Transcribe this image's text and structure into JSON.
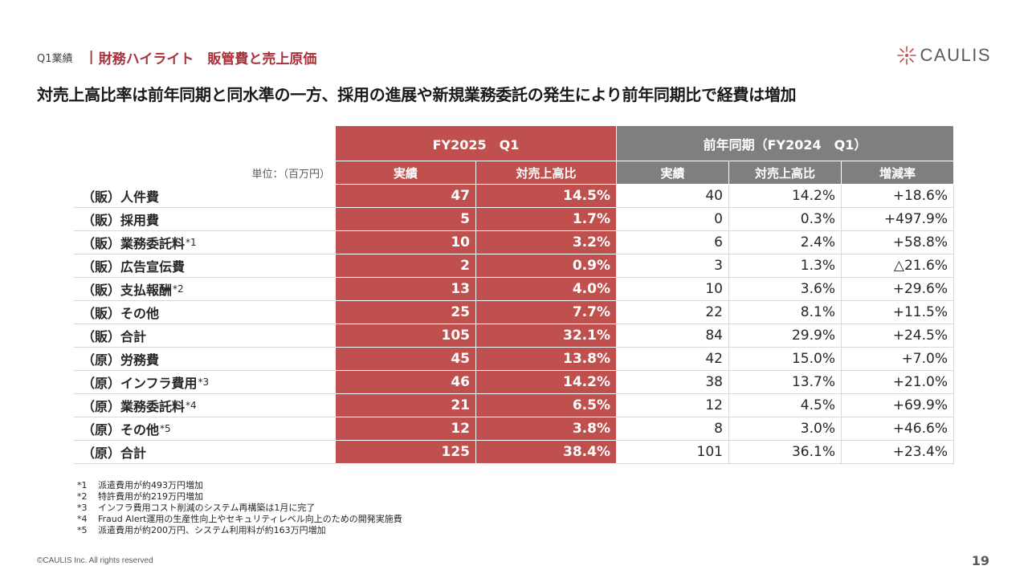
{
  "header": {
    "crumb": "Q1業績",
    "separator": "|",
    "section": "財務ハイライト　販管費と売上原価"
  },
  "logo": {
    "text": "CAULIS",
    "color": "#c0504d"
  },
  "headline": "対売上高比率は前年同期と同水準の一方、採用の進展や新規業務委託の発生により前年同期比で経費は増加",
  "table": {
    "unit_label": "単位：（百万円）",
    "group_current": "FY2025　Q1",
    "group_prior": "前年同期（FY2024　Q1）",
    "columns": [
      "実績",
      "対売上高比",
      "実績",
      "対売上高比",
      "増減率"
    ],
    "rows": [
      {
        "label": "（販）人件費",
        "note": "",
        "cur": "47",
        "cur_ratio": "14.5%",
        "prev": "40",
        "prev_ratio": "14.2%",
        "change": "+18.6%"
      },
      {
        "label": "（販）採用費",
        "note": "",
        "cur": "5",
        "cur_ratio": "1.7%",
        "prev": "0",
        "prev_ratio": "0.3%",
        "change": "+497.9%"
      },
      {
        "label": "（販）業務委託料",
        "note": "*1",
        "cur": "10",
        "cur_ratio": "3.2%",
        "prev": "6",
        "prev_ratio": "2.4%",
        "change": "+58.8%"
      },
      {
        "label": "（販）広告宣伝費",
        "note": "",
        "cur": "2",
        "cur_ratio": "0.9%",
        "prev": "3",
        "prev_ratio": "1.3%",
        "change": "△21.6%"
      },
      {
        "label": "（販）支払報酬",
        "note": "*2",
        "cur": "13",
        "cur_ratio": "4.0%",
        "prev": "10",
        "prev_ratio": "3.6%",
        "change": "+29.6%"
      },
      {
        "label": "（販）その他",
        "note": "",
        "cur": "25",
        "cur_ratio": "7.7%",
        "prev": "22",
        "prev_ratio": "8.1%",
        "change": "+11.5%"
      },
      {
        "label": "（販）合計",
        "note": "",
        "cur": "105",
        "cur_ratio": "32.1%",
        "prev": "84",
        "prev_ratio": "29.9%",
        "change": "+24.5%"
      },
      {
        "label": "（原）労務費",
        "note": "",
        "cur": "45",
        "cur_ratio": "13.8%",
        "prev": "42",
        "prev_ratio": "15.0%",
        "change": "+7.0%"
      },
      {
        "label": "（原）インフラ費用",
        "note": "*3",
        "cur": "46",
        "cur_ratio": "14.2%",
        "prev": "38",
        "prev_ratio": "13.7%",
        "change": "+21.0%"
      },
      {
        "label": "（原）業務委託料",
        "note": "*4",
        "cur": "21",
        "cur_ratio": "6.5%",
        "prev": "12",
        "prev_ratio": "4.5%",
        "change": "+69.9%"
      },
      {
        "label": "（原）その他",
        "note": "*5",
        "cur": "12",
        "cur_ratio": "3.8%",
        "prev": "8",
        "prev_ratio": "3.0%",
        "change": "+46.6%"
      },
      {
        "label": "（原）合計",
        "note": "",
        "cur": "125",
        "cur_ratio": "38.4%",
        "prev": "101",
        "prev_ratio": "36.1%",
        "change": "+23.4%"
      }
    ]
  },
  "notes": [
    {
      "key": "*1",
      "text": "派遣費用が約493万円増加"
    },
    {
      "key": "*2",
      "text": "特許費用が約219万円増加"
    },
    {
      "key": "*3",
      "text": "インフラ費用コスト削減のシステム再構築は1月に完了"
    },
    {
      "key": "*4",
      "text": "Fraud Alert運用の生産性向上やセキュリティレベル向上のための開発実施費"
    },
    {
      "key": "*5",
      "text": "派遣費用が約200万円、システム利用料が約163万円増加"
    }
  ],
  "footer": {
    "copyright": "©CAULIS Inc. All rights reserved",
    "page_number": "19"
  },
  "colors": {
    "accent_red": "#c0504d",
    "header_gray": "#7f7f7f",
    "section_red": "#a8323a"
  }
}
